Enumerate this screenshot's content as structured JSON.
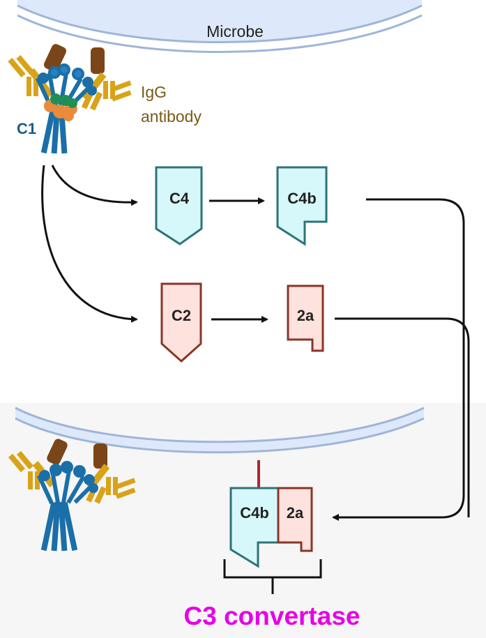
{
  "labels": {
    "microbe": "Microbe",
    "igg_line1": "IgG",
    "igg_line2": "antibody",
    "c1": "C1",
    "c4": "C4",
    "c4b": "C4b",
    "c2": "C2",
    "c2a": "2a",
    "complex_c4b": "C4b",
    "complex_2a": "2a",
    "product": "C3 convertase"
  },
  "colors": {
    "c4_fill": "#d6f8fb",
    "c4_stroke": "#2e7376",
    "c2_fill": "#fde2de",
    "c2_stroke": "#8a3525",
    "microbe_fill": "#dde9fa",
    "microbe_stroke": "#9fb5d8",
    "antibody": "#d9a318",
    "antibody_stalk": "#7a4518",
    "c1_blue": "#1b6fa8",
    "c1_green": "#1f8f55",
    "c1_orange": "#e98a3c",
    "highlight": "#e600e6"
  }
}
